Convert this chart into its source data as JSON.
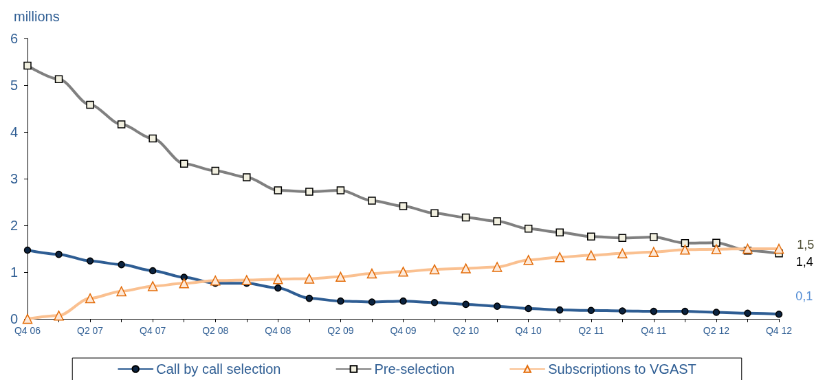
{
  "chart_data": {
    "type": "line",
    "ylabel": "millions",
    "categories": [
      "Q4 06",
      null,
      "Q2 07",
      null,
      "Q4 07",
      null,
      "Q2 08",
      null,
      "Q4 08",
      null,
      "Q2 09",
      null,
      "Q4 09",
      null,
      "Q2 10",
      null,
      "Q4 10",
      null,
      "Q2 11",
      null,
      "Q4 11",
      null,
      "Q2 12",
      null,
      "Q4 12"
    ],
    "series": [
      {
        "name": "Call by call selection",
        "color": "#2e5d93",
        "marker": "circle",
        "values": [
          1.47,
          1.38,
          1.24,
          1.16,
          1.03,
          0.89,
          0.76,
          0.76,
          0.66,
          0.44,
          0.38,
          0.36,
          0.38,
          0.35,
          0.31,
          0.27,
          0.22,
          0.19,
          0.18,
          0.17,
          0.16,
          0.16,
          0.14,
          0.12,
          0.1
        ],
        "value_labels": [
          null,
          null,
          null,
          null,
          null,
          null,
          null,
          null,
          null,
          null,
          null,
          null,
          null,
          null,
          null,
          null,
          null,
          null,
          null,
          null,
          null,
          null,
          null,
          null,
          "0,1"
        ]
      },
      {
        "name": "Pre-selection",
        "color": "#808080",
        "marker": "square",
        "values": [
          5.42,
          5.13,
          4.58,
          4.16,
          3.86,
          3.32,
          3.17,
          3.03,
          2.75,
          2.72,
          2.75,
          2.53,
          2.41,
          2.26,
          2.17,
          2.09,
          1.93,
          1.85,
          1.76,
          1.73,
          1.75,
          1.62,
          1.63,
          1.46,
          1.4
        ],
        "value_labels": [
          null,
          null,
          null,
          null,
          null,
          null,
          null,
          null,
          null,
          null,
          null,
          null,
          null,
          null,
          null,
          null,
          null,
          null,
          null,
          null,
          null,
          null,
          null,
          null,
          "1,4"
        ]
      },
      {
        "name": "Subscriptions to VGAST",
        "color": "#fac090",
        "marker": "triangle",
        "values": [
          0,
          0.07,
          0.44,
          0.59,
          0.7,
          0.76,
          0.82,
          0.83,
          0.85,
          0.86,
          0.9,
          0.97,
          1.01,
          1.06,
          1.08,
          1.11,
          1.26,
          1.32,
          1.36,
          1.4,
          1.43,
          1.48,
          1.49,
          1.5,
          1.5
        ],
        "value_labels": [
          null,
          null,
          null,
          null,
          null,
          null,
          null,
          null,
          null,
          null,
          null,
          null,
          null,
          null,
          null,
          null,
          null,
          null,
          null,
          null,
          null,
          null,
          null,
          null,
          "1,5"
        ]
      }
    ],
    "ylim": [
      0,
      6
    ],
    "yticks": [
      0,
      1,
      2,
      3,
      4,
      5,
      6
    ],
    "grid": false,
    "legend": "bottom"
  }
}
